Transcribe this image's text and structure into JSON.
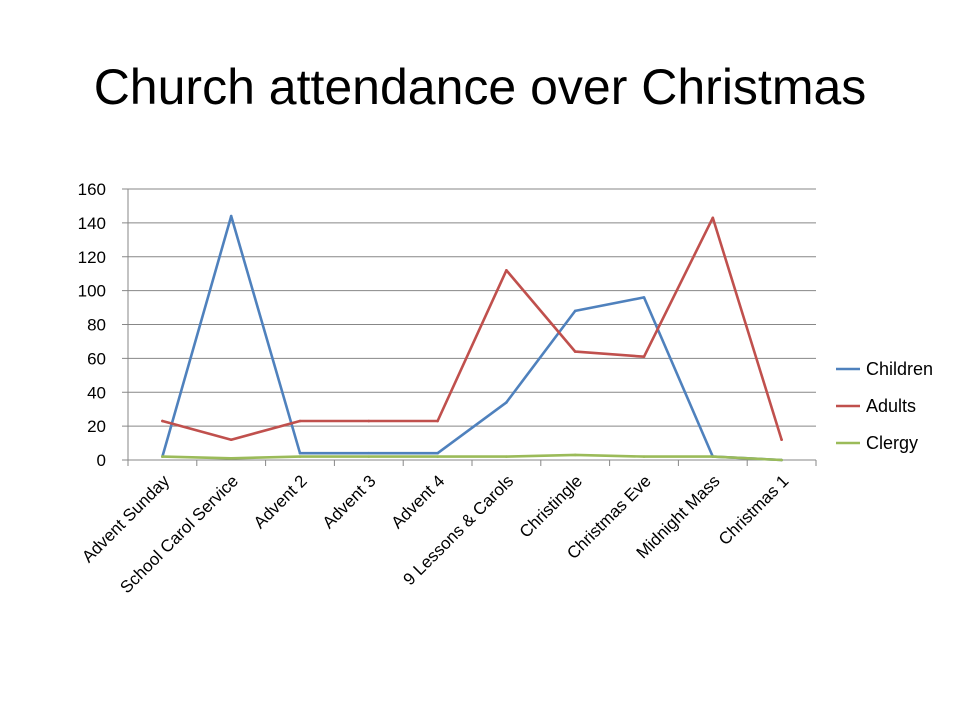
{
  "chart_data": {
    "type": "line",
    "title": "Church attendance over Christmas",
    "xlabel": "",
    "ylabel": "",
    "ylim": [
      0,
      160
    ],
    "yticks": [
      0,
      20,
      40,
      60,
      80,
      100,
      120,
      140,
      160
    ],
    "grid": true,
    "legend_position": "right",
    "categories": [
      "Advent Sunday",
      "School Carol Service",
      "Advent 2",
      "Advent 3",
      "Advent 4",
      "9 Lessons & Carols",
      "Christingle",
      "Christmas Eve",
      "Midnight Mass",
      "Christmas 1"
    ],
    "series": [
      {
        "name": "Children",
        "color": "#4F81BD",
        "values": [
          2,
          144,
          4,
          4,
          4,
          34,
          88,
          96,
          2,
          0
        ]
      },
      {
        "name": "Adults",
        "color": "#C0504D",
        "values": [
          23,
          12,
          23,
          23,
          23,
          112,
          64,
          61,
          143,
          12
        ]
      },
      {
        "name": "Clergy",
        "color": "#9BBB59",
        "values": [
          2,
          1,
          2,
          2,
          2,
          2,
          3,
          2,
          2,
          0
        ]
      }
    ]
  }
}
